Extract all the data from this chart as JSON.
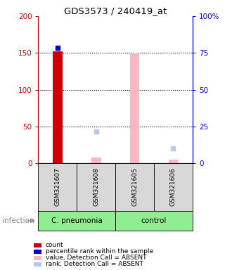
{
  "title": "GDS3573 / 240419_at",
  "samples": [
    "GSM321607",
    "GSM321608",
    "GSM321605",
    "GSM321606"
  ],
  "ylim_left": [
    0,
    200
  ],
  "ylim_right": [
    0,
    100
  ],
  "yticks_left": [
    0,
    50,
    100,
    150,
    200
  ],
  "yticks_right": [
    0,
    25,
    50,
    75,
    100
  ],
  "yticklabels_left": [
    "0",
    "50",
    "100",
    "150",
    "200"
  ],
  "yticklabels_right": [
    "0",
    "25",
    "50",
    "75",
    "100%"
  ],
  "left_axis_color": "#cc0000",
  "right_axis_color": "#0000cc",
  "count_bar_val": 152,
  "count_bar_idx": 0,
  "absent_bar_vals": [
    null,
    8,
    148,
    5
  ],
  "percentile_val": 157,
  "percentile_idx": 0,
  "rank_absent_vals": [
    null,
    43,
    null,
    20
  ],
  "legend_items": [
    {
      "color": "#cc0000",
      "label": "count"
    },
    {
      "color": "#0000cc",
      "label": "percentile rank within the sample"
    },
    {
      "color": "#ffb6c1",
      "label": "value, Detection Call = ABSENT"
    },
    {
      "color": "#b8c8e8",
      "label": "rank, Detection Call = ABSENT"
    }
  ],
  "cpneumonia_label": "C. pneumonia",
  "control_label": "control",
  "infection_label": "infection",
  "group_color": "#90EE90",
  "sample_bg_color": "#d8d8d8",
  "dotted_lines": [
    50,
    100,
    150
  ],
  "bar_width": 0.25
}
